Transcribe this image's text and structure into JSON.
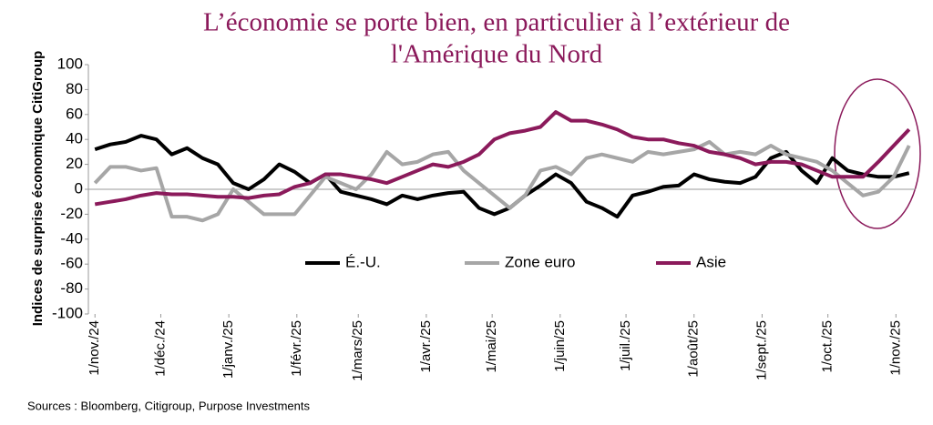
{
  "chart_data": {
    "type": "line",
    "title": [
      "L’économie se porte bien, en particulier à l’extérieur de",
      "l'Amérique du Nord"
    ],
    "y_label": "Indices de surprise économique CitiGroup",
    "source": "Sources : Bloomberg, Citigroup, Purpose Investments",
    "x": [
      "2024-11-01",
      "2024-11-08",
      "2024-11-15",
      "2024-11-22",
      "2024-11-29",
      "2024-12-06",
      "2024-12-13",
      "2024-12-20",
      "2024-12-27",
      "2025-01-03",
      "2025-01-10",
      "2025-01-17",
      "2025-01-24",
      "2025-01-31",
      "2025-02-07",
      "2025-02-14",
      "2025-02-21",
      "2025-02-28",
      "2025-03-07",
      "2025-03-14",
      "2025-03-21",
      "2025-03-28",
      "2025-04-04",
      "2025-04-11",
      "2025-04-18",
      "2025-04-25",
      "2025-05-02",
      "2025-05-09",
      "2025-05-16",
      "2025-05-23",
      "2025-05-30",
      "2025-06-06",
      "2025-06-13",
      "2025-06-20",
      "2025-06-27",
      "2025-07-04",
      "2025-07-11",
      "2025-07-18",
      "2025-07-25",
      "2025-08-01",
      "2025-08-08",
      "2025-08-15",
      "2025-08-22",
      "2025-08-29",
      "2025-09-05",
      "2025-09-12",
      "2025-09-19",
      "2025-09-26",
      "2025-10-03",
      "2025-10-10",
      "2025-10-17",
      "2025-10-24",
      "2025-10-31",
      "2025-11-07"
    ],
    "series": [
      {
        "name": "É.-U.",
        "color": "#000000",
        "values": [
          32,
          36,
          38,
          43,
          40,
          28,
          33,
          25,
          20,
          5,
          0,
          8,
          20,
          14,
          5,
          12,
          -2,
          -5,
          -8,
          -12,
          -5,
          -8,
          -5,
          -3,
          -2,
          -15,
          -20,
          -15,
          -5,
          3,
          12,
          5,
          -10,
          -15,
          -22,
          -5,
          -2,
          2,
          3,
          12,
          8,
          6,
          5,
          10,
          25,
          30,
          15,
          5,
          25,
          15,
          12,
          10,
          10,
          13
        ]
      },
      {
        "name": "Zone euro",
        "color": "#a6a6a6",
        "values": [
          5,
          18,
          18,
          15,
          17,
          -22,
          -22,
          -25,
          -20,
          0,
          -10,
          -20,
          -20,
          -20,
          -5,
          10,
          5,
          0,
          12,
          30,
          20,
          22,
          28,
          30,
          15,
          5,
          -5,
          -15,
          -5,
          15,
          18,
          12,
          25,
          28,
          25,
          22,
          30,
          28,
          30,
          32,
          38,
          28,
          30,
          28,
          35,
          28,
          25,
          22,
          15,
          5,
          -5,
          -2,
          10,
          35
        ]
      },
      {
        "name": "Asie",
        "color": "#8b1a5b",
        "values": [
          -12,
          -10,
          -8,
          -5,
          -3,
          -4,
          -4,
          -5,
          -6,
          -6,
          -7,
          -5,
          -4,
          2,
          5,
          12,
          12,
          10,
          8,
          5,
          10,
          15,
          20,
          18,
          22,
          28,
          40,
          45,
          47,
          50,
          62,
          55,
          55,
          52,
          48,
          42,
          40,
          40,
          37,
          35,
          30,
          28,
          25,
          20,
          22,
          22,
          20,
          15,
          10,
          10,
          10,
          22,
          35,
          48
        ]
      }
    ],
    "xlim": [
      "2024-10-29",
      "2025-11-10"
    ],
    "xticks": [
      {
        "value": "2024-11-01",
        "label": "1/nov./24"
      },
      {
        "value": "2024-12-01",
        "label": "1/déc./24"
      },
      {
        "value": "2025-01-01",
        "label": "1/janv./25"
      },
      {
        "value": "2025-02-01",
        "label": "1/févr./25"
      },
      {
        "value": "2025-03-01",
        "label": "1/mars/25"
      },
      {
        "value": "2025-04-01",
        "label": "1/avr./25"
      },
      {
        "value": "2025-05-01",
        "label": "1/mai/25"
      },
      {
        "value": "2025-06-01",
        "label": "1/juin/25"
      },
      {
        "value": "2025-07-01",
        "label": "1/juil./25"
      },
      {
        "value": "2025-08-01",
        "label": "1/août/25"
      },
      {
        "value": "2025-09-01",
        "label": "1/sept./25"
      },
      {
        "value": "2025-10-01",
        "label": "1/oct./25"
      },
      {
        "value": "2025-11-01",
        "label": "1/nov./25"
      }
    ],
    "ylim": [
      -100,
      100
    ],
    "yticks": [
      -100,
      -80,
      -60,
      -40,
      -20,
      0,
      20,
      40,
      60,
      80,
      100
    ]
  }
}
